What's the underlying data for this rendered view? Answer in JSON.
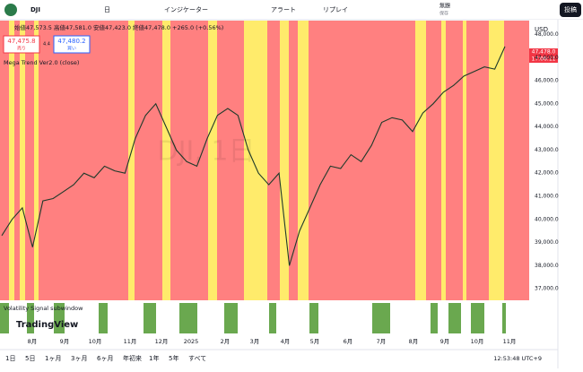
{
  "header": {
    "symbol": "DJI",
    "interval": "日",
    "indicators": "インジケーター",
    "alert": "アラート",
    "replay": "リプレイ",
    "layout_name": "無題",
    "save": "保存",
    "publish": "投稿"
  },
  "legend": {
    "ohlc": "始値47,573.5 高値47,581.0 安値47,423.0 終値47,478.0 +265.0 (+0.56%)",
    "sell_price": "47,475.8",
    "sell": "売り",
    "spread": "4.4",
    "buy_price": "47,480.2",
    "buy": "買い",
    "indicator": "Mega Trend Ver2.0 (close)",
    "subwindow": "Volatility Signal subwindow",
    "watermark": "DJI, 1日"
  },
  "price_axis": {
    "currency": "USD",
    "last_price": "47,478.0",
    "countdown": "17:06:11",
    "ylim": [
      36500,
      48600
    ],
    "yticks": [
      {
        "value": 48000,
        "label": "48,000.0"
      },
      {
        "value": 47000,
        "label": "47,000.0"
      },
      {
        "value": 46000,
        "label": "46,000.0"
      },
      {
        "value": 45000,
        "label": "45,000.0"
      },
      {
        "value": 44000,
        "label": "44,000.0"
      },
      {
        "value": 43000,
        "label": "43,000.0"
      },
      {
        "value": 42000,
        "label": "42,000.0"
      },
      {
        "value": 41000,
        "label": "41,000.0"
      },
      {
        "value": 40000,
        "label": "40,000.0"
      },
      {
        "value": 39000,
        "label": "39,000.0"
      },
      {
        "value": 38000,
        "label": "38,000.0"
      },
      {
        "value": 37000,
        "label": "37,000.0"
      }
    ]
  },
  "price_series": {
    "values": [
      39300,
      40000,
      40500,
      38800,
      40800,
      40900,
      41200,
      41500,
      42000,
      41800,
      42300,
      42100,
      42000,
      43500,
      44500,
      45000,
      44000,
      43000,
      42500,
      42300,
      43500,
      44500,
      44800,
      44500,
      43000,
      42000,
      41500,
      42000,
      38000,
      39500,
      40500,
      41500,
      42300,
      42200,
      42800,
      42500,
      43200,
      44200,
      44400,
      44300,
      43800,
      44600,
      45000,
      45500,
      45800,
      46200,
      46400,
      46600,
      46500,
      47478
    ]
  },
  "time_axis": [
    "8月",
    "9月",
    "10月",
    "11月",
    "12月",
    "2025",
    "2月",
    "3月",
    "4月",
    "5月",
    "6月",
    "7月",
    "8月",
    "9月",
    "10月",
    "11月"
  ],
  "bottom_bar": {
    "ranges": [
      "1日",
      "5日",
      "1ヶ月",
      "3ヶ月",
      "6ヶ月",
      "年初来",
      "1年",
      "5年",
      "すべて"
    ],
    "clock": "12:53:48 UTC+9"
  },
  "brand": "TradingView"
}
